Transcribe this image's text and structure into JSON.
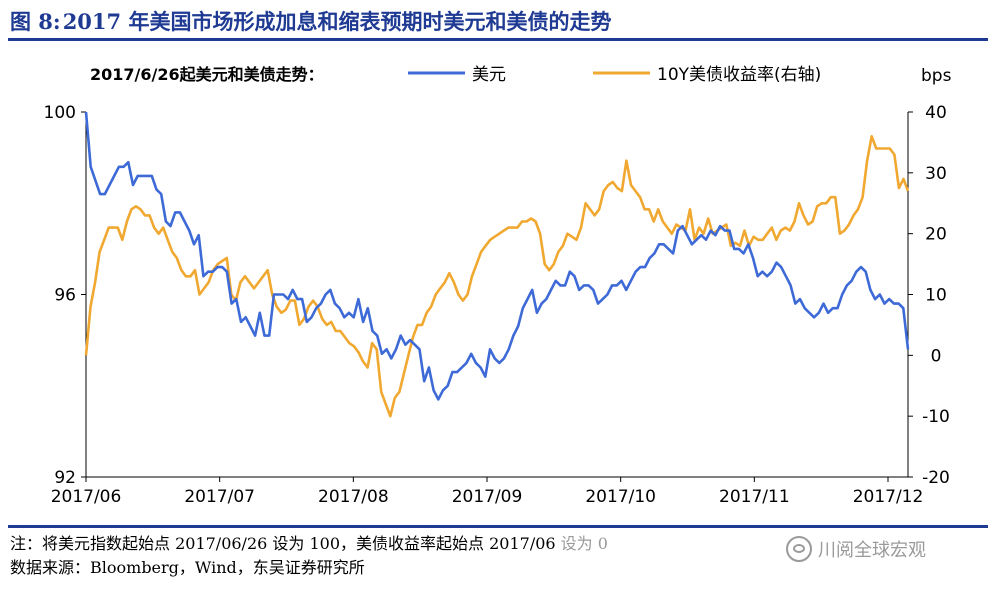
{
  "figure": {
    "number": "图 8:",
    "title": "2017 年美国市场形成加息和缩表预期时美元和美债的走势"
  },
  "notes": {
    "line1": "注：将美元指数起始点 2017/06/26 设为 100，美债收益率起始点 2017/06",
    "line1_tail": "设为 0",
    "line2": "数据来源：Bloomberg，Wind，东吴证券研究所"
  },
  "watermark": {
    "text": "川阅全球宏观"
  },
  "chart_data": {
    "type": "line",
    "subtitle": "2017/6/26起美元和美债走势：",
    "right_unit": "bps",
    "x_labels": [
      "2017/06",
      "2017/07",
      "2017/08",
      "2017/09",
      "2017/10",
      "2017/11",
      "2017/12"
    ],
    "left_axis": {
      "min": 92,
      "max": 100,
      "ticks": [
        92,
        96,
        100
      ]
    },
    "right_axis": {
      "min": -20,
      "max": 40,
      "ticks": [
        -20,
        -10,
        0,
        10,
        20,
        30,
        40
      ]
    },
    "series": [
      {
        "name": "美元",
        "axis": "left",
        "color": "#3d6ad6",
        "values": [
          100.0,
          98.8,
          98.5,
          98.2,
          98.2,
          98.4,
          98.6,
          98.8,
          98.8,
          98.9,
          98.4,
          98.6,
          98.6,
          98.6,
          98.6,
          98.3,
          98.2,
          97.6,
          97.5,
          97.8,
          97.8,
          97.6,
          97.4,
          97.1,
          97.3,
          96.4,
          96.5,
          96.5,
          96.6,
          96.6,
          96.5,
          95.8,
          95.9,
          95.4,
          95.5,
          95.3,
          95.1,
          95.6,
          95.1,
          95.1,
          96.0,
          96.0,
          96.0,
          95.9,
          96.1,
          95.9,
          95.9,
          95.4,
          95.5,
          95.7,
          95.8,
          96.0,
          96.1,
          95.8,
          95.7,
          95.5,
          95.6,
          95.5,
          95.9,
          95.4,
          95.7,
          95.2,
          95.1,
          94.7,
          94.8,
          94.6,
          94.8,
          95.1,
          94.9,
          95.0,
          94.9,
          94.8,
          94.1,
          94.4,
          93.9,
          93.7,
          93.9,
          94.0,
          94.3,
          94.3,
          94.4,
          94.5,
          94.7,
          94.5,
          94.4,
          94.2,
          94.8,
          94.6,
          94.5,
          94.6,
          94.8,
          95.1,
          95.3,
          95.7,
          95.9,
          96.1,
          95.6,
          95.8,
          95.9,
          96.1,
          96.3,
          96.2,
          96.2,
          96.5,
          96.4,
          96.1,
          96.2,
          96.2,
          96.1,
          95.8,
          95.9,
          96.0,
          96.2,
          96.2,
          96.3,
          96.1,
          96.3,
          96.5,
          96.6,
          96.6,
          96.8,
          96.9,
          97.1,
          97.1,
          97.0,
          96.9,
          97.4,
          97.5,
          97.3,
          97.1,
          97.2,
          97.3,
          97.2,
          97.4,
          97.3,
          97.5,
          97.4,
          97.4,
          97.0,
          97.0,
          96.9,
          97.1,
          96.8,
          96.4,
          96.5,
          96.4,
          96.5,
          96.7,
          96.6,
          96.4,
          96.2,
          95.8,
          95.9,
          95.7,
          95.6,
          95.5,
          95.6,
          95.8,
          95.6,
          95.7,
          95.7,
          96.0,
          96.2,
          96.3,
          96.5,
          96.6,
          96.5,
          96.1,
          95.9,
          96.0,
          95.8,
          95.9,
          95.8,
          95.8,
          95.7,
          94.8
        ]
      },
      {
        "name": "10Y美债收益率(右轴)",
        "axis": "right",
        "color": "#f0a830",
        "values": [
          0.0,
          8.0,
          12.0,
          17.0,
          19.0,
          21.0,
          21.0,
          21.0,
          19.0,
          22.0,
          24.0,
          24.5,
          24.0,
          23.0,
          23.0,
          21.0,
          20.0,
          21.0,
          19.0,
          17.0,
          16.0,
          14.0,
          13.0,
          13.0,
          14.0,
          10.0,
          11.0,
          12.0,
          14.0,
          15.0,
          15.5,
          16.0,
          10.0,
          9.0,
          12.0,
          13.0,
          12.0,
          11.0,
          12.0,
          13.0,
          14.0,
          10.0,
          8.0,
          7.0,
          7.5,
          9.0,
          9.0,
          5.0,
          6.0,
          8.0,
          9.0,
          8.0,
          6.0,
          5.0,
          5.5,
          4.0,
          4.0,
          3.0,
          2.0,
          1.5,
          0.5,
          -1.0,
          -2.0,
          2.0,
          1.0,
          -6.0,
          -8.0,
          -10.0,
          -7.0,
          -6.0,
          -3.0,
          0.0,
          3.0,
          5.0,
          5.0,
          7.0,
          8.0,
          10.0,
          11.0,
          12.0,
          13.5,
          12.0,
          10.0,
          9.0,
          10.0,
          13.0,
          15.0,
          17.0,
          18.0,
          19.0,
          19.5,
          20.0,
          20.5,
          21.0,
          21.0,
          21.0,
          22.0,
          22.0,
          22.5,
          22.0,
          20.0,
          15.0,
          14.0,
          15.0,
          17.0,
          18.0,
          20.0,
          19.5,
          19.0,
          21.0,
          25.0,
          24.0,
          23.0,
          24.0,
          27.0,
          28.0,
          28.5,
          27.5,
          27.0,
          32.0,
          28.0,
          27.0,
          26.0,
          24.0,
          24.0,
          22.0,
          24.0,
          22.0,
          21.0,
          20.0,
          21.5,
          21.0,
          20.5,
          24.0,
          19.0,
          21.0,
          20.0,
          22.5,
          20.0,
          20.5,
          21.0,
          21.5,
          18.0,
          18.5,
          18.0,
          20.5,
          18.0,
          19.5,
          19.0,
          19.0,
          20.0,
          21.0,
          19.0,
          20.5,
          21.0,
          20.5,
          22.0,
          25.0,
          23.0,
          21.5,
          22.0,
          24.5,
          25.0,
          25.0,
          26.0,
          26.0,
          20.0,
          20.5,
          21.5,
          23.0,
          24.0,
          26.0,
          32.0,
          36.0,
          34.0,
          34.0,
          34.0,
          34.0,
          33.0,
          27.5,
          29.0,
          27.0
        ]
      }
    ]
  }
}
